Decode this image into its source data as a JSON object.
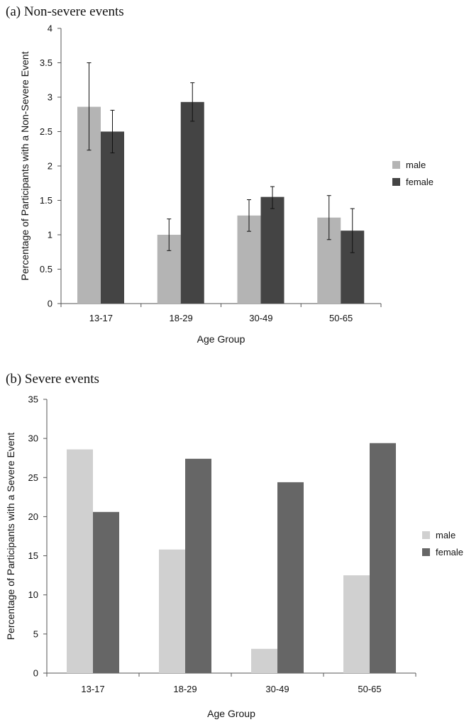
{
  "chart_data": [
    {
      "type": "bar",
      "panel_title": "(a)  Non-severe events",
      "categories": [
        "13-17",
        "18-29",
        "30-49",
        "50-65"
      ],
      "series": [
        {
          "name": "male",
          "color": "#b4b4b4",
          "values": [
            2.86,
            1.0,
            1.28,
            1.25
          ],
          "error_low": [
            2.23,
            0.77,
            1.05,
            0.93
          ],
          "error_high": [
            3.5,
            1.23,
            1.51,
            1.57
          ]
        },
        {
          "name": "female",
          "color": "#444444",
          "values": [
            2.5,
            2.93,
            1.55,
            1.06
          ],
          "error_low": [
            2.19,
            2.65,
            1.38,
            0.74
          ],
          "error_high": [
            2.81,
            3.21,
            1.7,
            1.38
          ]
        }
      ],
      "xlabel": "Age Group",
      "ylabel": "Percentage of Participants with a Non-Severe Event",
      "ylim": [
        0,
        4
      ],
      "yticks": [
        "0",
        "0.5",
        "1",
        "1.5",
        "2",
        "2.5",
        "3",
        "3.5",
        "4"
      ],
      "legend_position": "right",
      "grid": false
    },
    {
      "type": "bar",
      "panel_title": "(b)  Severe events",
      "categories": [
        "13-17",
        "18-29",
        "30-49",
        "50-65"
      ],
      "series": [
        {
          "name": "male",
          "color": "#d0d0d0",
          "values": [
            28.6,
            15.8,
            3.1,
            12.5
          ]
        },
        {
          "name": "female",
          "color": "#666666",
          "values": [
            20.6,
            27.4,
            24.4,
            29.4
          ]
        }
      ],
      "xlabel": "Age Group",
      "ylabel": "Percentage of Participants with a Severe Event",
      "ylim": [
        0,
        35
      ],
      "yticks": [
        "0",
        "5",
        "10",
        "15",
        "20",
        "25",
        "30",
        "35"
      ],
      "legend_position": "right",
      "grid": false
    }
  ]
}
